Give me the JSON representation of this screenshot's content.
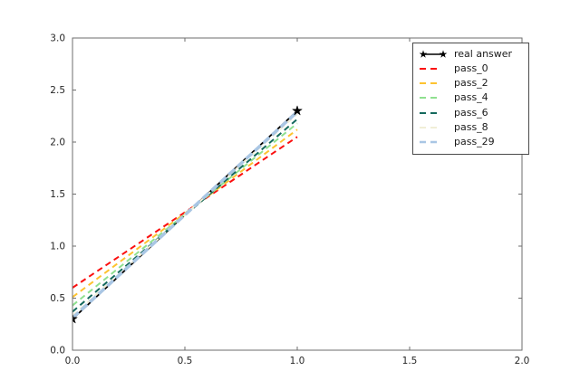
{
  "figure": {
    "background": "#ffffff",
    "axis_frame_color": "#6e6e6e",
    "tick_color": "#6e6e6e",
    "text_color": "#262626",
    "legend_border_color": "#4a4a4a"
  },
  "chart_data": {
    "type": "line",
    "title": "",
    "xlabel": "",
    "ylabel": "",
    "xlim": [
      0,
      2
    ],
    "ylim": [
      0,
      3
    ],
    "xticks": [
      0,
      0.5,
      1,
      1.5,
      2
    ],
    "xtick_labels": [
      "0.0",
      "0.5",
      "1.0",
      "1.5",
      "2.0"
    ],
    "yticks": [
      0,
      0.5,
      1,
      1.5,
      2,
      2.5,
      3
    ],
    "ytick_labels": [
      "0.0",
      "0.5",
      "1.0",
      "1.5",
      "2.0",
      "2.5",
      "3.0"
    ],
    "grid": false,
    "legend_position": "upper right",
    "series": [
      {
        "name": "real answer",
        "x": [
          0,
          1
        ],
        "y": [
          0.3,
          2.3
        ],
        "color": "#000000",
        "style": "solid",
        "marker": "star",
        "width": 1.8,
        "dash": ""
      },
      {
        "name": "pass_0",
        "x": [
          0,
          1
        ],
        "y": [
          0.6,
          2.05
        ],
        "color": "#fb0f0f",
        "style": "dashed",
        "marker": "",
        "width": 2,
        "dash": "6.5 4.5"
      },
      {
        "name": "pass_2",
        "x": [
          0,
          1
        ],
        "y": [
          0.51,
          2.12
        ],
        "color": "#fdc330",
        "style": "dashed",
        "marker": "",
        "width": 2,
        "dash": "6.5 4.5"
      },
      {
        "name": "pass_4",
        "x": [
          0,
          1
        ],
        "y": [
          0.43,
          2.18
        ],
        "color": "#8fe08f",
        "style": "dashed",
        "marker": "",
        "width": 2,
        "dash": "6.5 4.5"
      },
      {
        "name": "pass_6",
        "x": [
          0,
          1
        ],
        "y": [
          0.37,
          2.22
        ],
        "color": "#14695d",
        "style": "dashed",
        "marker": "",
        "width": 2,
        "dash": "6.5 4.5"
      },
      {
        "name": "pass_8",
        "x": [
          0,
          1
        ],
        "y": [
          0.33,
          2.27
        ],
        "color": "#f1eed7",
        "style": "dashed",
        "marker": "",
        "width": 2,
        "dash": "6.5 4.5"
      },
      {
        "name": "pass_29",
        "x": [
          0,
          1
        ],
        "y": [
          0.31,
          2.29
        ],
        "color": "#a9c6e4",
        "style": "dashed",
        "marker": "",
        "width": 3.5,
        "dash": "9 4"
      }
    ]
  }
}
